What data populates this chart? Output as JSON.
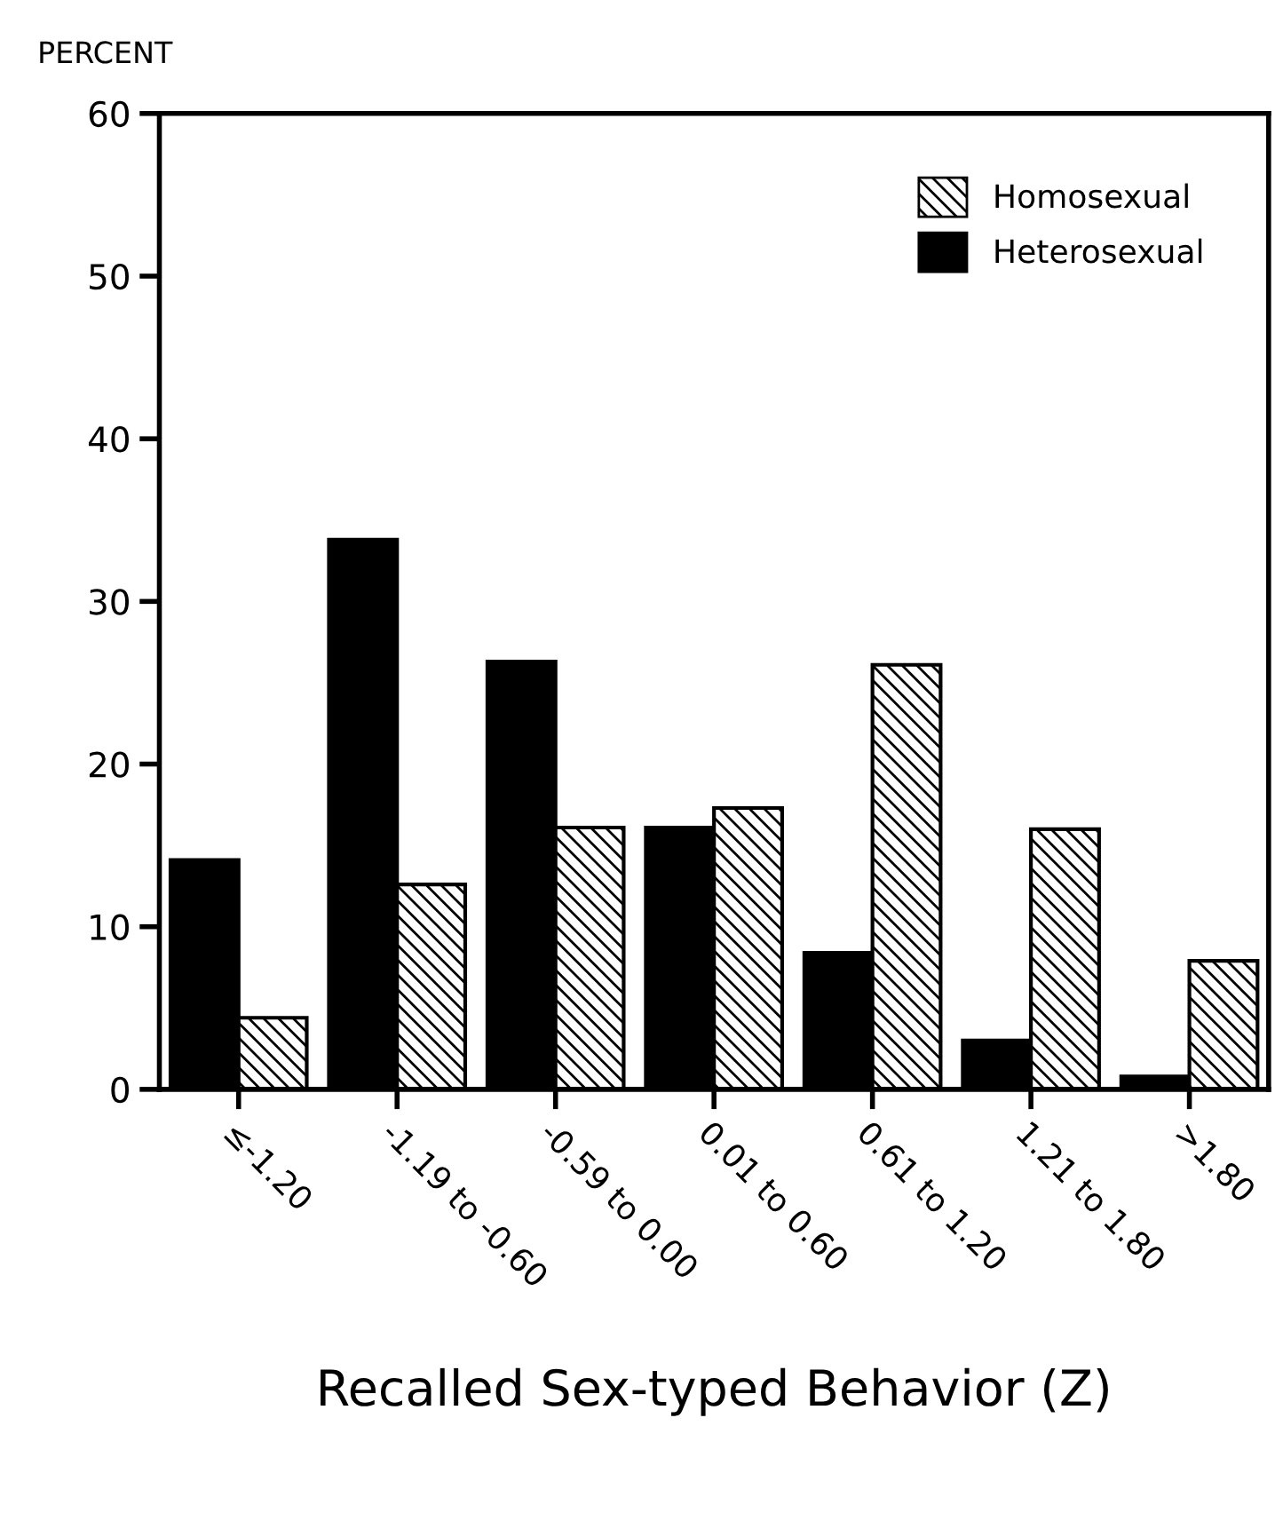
{
  "chart_data": {
    "type": "bar",
    "ylabel": "PERCENT",
    "xlabel": "Recalled Sex-typed Behavior (Z)",
    "categories": [
      "≤-1.20",
      "-1.19 to -0.60",
      "-0.59 to 0.00",
      "0.01 to 0.60",
      "0.61 to 1.20",
      "1.21 to 1.80",
      ">1.80"
    ],
    "series": [
      {
        "name": "Heterosexual",
        "color": "#000000",
        "values": [
          14.1,
          33.8,
          26.3,
          16.1,
          8.4,
          3.0,
          0.8
        ]
      },
      {
        "name": "Homosexual",
        "color": "#000000",
        "values": [
          4.4,
          12.6,
          16.1,
          17.3,
          26.1,
          16.0,
          7.9
        ]
      }
    ],
    "ylim": [
      0,
      60
    ],
    "yticks": [
      0,
      10,
      20,
      30,
      40,
      50,
      60
    ],
    "grid": false,
    "legend": "top right"
  }
}
